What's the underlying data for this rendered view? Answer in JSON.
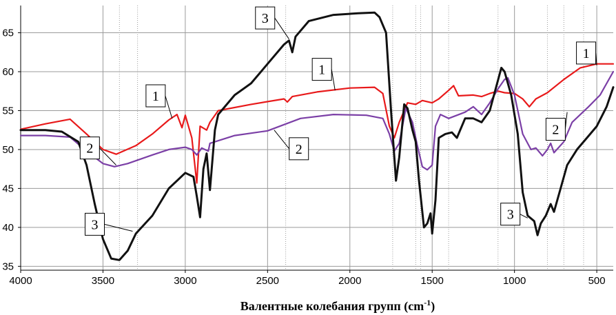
{
  "chart_data": {
    "type": "line",
    "title": "",
    "xlabel": "Валентные колебания групп (cm",
    "xlabel_sup": "-1",
    "xlabel_tail": ")",
    "ylabel": "",
    "xlim": [
      4000,
      400
    ],
    "ylim": [
      34.5,
      68.5
    ],
    "x_reversed": true,
    "grid": true,
    "legend": "none",
    "x_ticks": [
      4000,
      3500,
      3000,
      2500,
      2000,
      1500,
      1000,
      500
    ],
    "x_tick_labels": [
      "4000",
      "3500",
      "3000",
      "2500",
      "2000",
      "1500",
      "1000",
      "500"
    ],
    "y_ticks": [
      35,
      40,
      45,
      50,
      55,
      60,
      65
    ],
    "y_tick_labels": [
      "35",
      "40",
      "45",
      "50",
      "55",
      "60",
      "65"
    ],
    "reference_lines_x": [
      3400,
      3290,
      2390,
      1740,
      1600,
      1570,
      1400,
      1100,
      800,
      700,
      580
    ],
    "series": [
      {
        "name": "1",
        "color": "#e8191a",
        "points": [
          [
            4000,
            52.6
          ],
          [
            3850,
            53.3
          ],
          [
            3700,
            53.9
          ],
          [
            3600,
            52.0
          ],
          [
            3500,
            50.0
          ],
          [
            3420,
            49.4
          ],
          [
            3300,
            50.5
          ],
          [
            3200,
            52.0
          ],
          [
            3100,
            53.8
          ],
          [
            3050,
            54.5
          ],
          [
            3020,
            52.8
          ],
          [
            3000,
            54.4
          ],
          [
            2960,
            51.5
          ],
          [
            2930,
            45.7
          ],
          [
            2910,
            53.0
          ],
          [
            2870,
            52.5
          ],
          [
            2850,
            53.5
          ],
          [
            2800,
            55.0
          ],
          [
            2600,
            55.8
          ],
          [
            2400,
            56.5
          ],
          [
            2380,
            56.1
          ],
          [
            2350,
            56.8
          ],
          [
            2200,
            57.4
          ],
          [
            2000,
            57.9
          ],
          [
            1850,
            58.0
          ],
          [
            1800,
            57.2
          ],
          [
            1760,
            53.0
          ],
          [
            1730,
            51.5
          ],
          [
            1700,
            53.5
          ],
          [
            1650,
            56.0
          ],
          [
            1600,
            55.8
          ],
          [
            1560,
            56.3
          ],
          [
            1500,
            56.0
          ],
          [
            1460,
            56.5
          ],
          [
            1400,
            57.6
          ],
          [
            1370,
            58.2
          ],
          [
            1340,
            56.9
          ],
          [
            1250,
            57.0
          ],
          [
            1200,
            56.8
          ],
          [
            1150,
            57.2
          ],
          [
            1100,
            57.5
          ],
          [
            1060,
            57.3
          ],
          [
            1000,
            57.2
          ],
          [
            950,
            56.5
          ],
          [
            910,
            55.5
          ],
          [
            870,
            56.5
          ],
          [
            800,
            57.3
          ],
          [
            700,
            59.0
          ],
          [
            600,
            60.5
          ],
          [
            500,
            61.0
          ],
          [
            400,
            61.0
          ]
        ]
      },
      {
        "name": "2",
        "color": "#7b3fa6",
        "points": [
          [
            4000,
            51.8
          ],
          [
            3850,
            51.8
          ],
          [
            3700,
            51.6
          ],
          [
            3600,
            49.8
          ],
          [
            3500,
            48.2
          ],
          [
            3430,
            47.8
          ],
          [
            3350,
            48.2
          ],
          [
            3200,
            49.3
          ],
          [
            3100,
            50.0
          ],
          [
            3000,
            50.3
          ],
          [
            2960,
            50.0
          ],
          [
            2930,
            49.3
          ],
          [
            2900,
            50.2
          ],
          [
            2860,
            49.8
          ],
          [
            2850,
            50.8
          ],
          [
            2700,
            51.8
          ],
          [
            2500,
            52.4
          ],
          [
            2300,
            54.0
          ],
          [
            2100,
            54.5
          ],
          [
            1900,
            54.4
          ],
          [
            1800,
            54.0
          ],
          [
            1760,
            52.0
          ],
          [
            1730,
            49.8
          ],
          [
            1700,
            50.8
          ],
          [
            1660,
            55.3
          ],
          [
            1620,
            53.5
          ],
          [
            1590,
            50.5
          ],
          [
            1560,
            47.8
          ],
          [
            1530,
            47.4
          ],
          [
            1500,
            48.0
          ],
          [
            1480,
            53.0
          ],
          [
            1450,
            54.5
          ],
          [
            1400,
            54.0
          ],
          [
            1300,
            54.8
          ],
          [
            1250,
            55.5
          ],
          [
            1200,
            54.5
          ],
          [
            1150,
            56.0
          ],
          [
            1100,
            57.8
          ],
          [
            1060,
            59.0
          ],
          [
            1040,
            59.2
          ],
          [
            1000,
            57.0
          ],
          [
            950,
            52.0
          ],
          [
            900,
            50.0
          ],
          [
            870,
            50.2
          ],
          [
            830,
            49.2
          ],
          [
            800,
            50.0
          ],
          [
            780,
            50.8
          ],
          [
            760,
            49.6
          ],
          [
            700,
            51.0
          ],
          [
            650,
            53.5
          ],
          [
            550,
            55.5
          ],
          [
            480,
            57.0
          ],
          [
            400,
            60.0
          ]
        ]
      },
      {
        "name": "3",
        "color": "#111111",
        "points": [
          [
            4000,
            52.5
          ],
          [
            3850,
            52.5
          ],
          [
            3750,
            52.3
          ],
          [
            3650,
            51.0
          ],
          [
            3600,
            48.0
          ],
          [
            3550,
            43.0
          ],
          [
            3500,
            38.5
          ],
          [
            3450,
            36.0
          ],
          [
            3400,
            35.8
          ],
          [
            3350,
            37.0
          ],
          [
            3300,
            39.2
          ],
          [
            3200,
            41.5
          ],
          [
            3100,
            45.0
          ],
          [
            3000,
            47.0
          ],
          [
            2950,
            46.5
          ],
          [
            2930,
            44.0
          ],
          [
            2910,
            41.3
          ],
          [
            2890,
            47.5
          ],
          [
            2870,
            49.5
          ],
          [
            2850,
            44.8
          ],
          [
            2820,
            52.5
          ],
          [
            2800,
            54.5
          ],
          [
            2700,
            57.0
          ],
          [
            2600,
            58.5
          ],
          [
            2500,
            61.0
          ],
          [
            2400,
            63.5
          ],
          [
            2370,
            64.0
          ],
          [
            2350,
            62.5
          ],
          [
            2330,
            64.5
          ],
          [
            2250,
            66.5
          ],
          [
            2100,
            67.3
          ],
          [
            1950,
            67.5
          ],
          [
            1850,
            67.6
          ],
          [
            1820,
            67.0
          ],
          [
            1780,
            65.0
          ],
          [
            1750,
            55.0
          ],
          [
            1720,
            46.0
          ],
          [
            1700,
            49.0
          ],
          [
            1670,
            55.8
          ],
          [
            1650,
            55.3
          ],
          [
            1620,
            52.5
          ],
          [
            1600,
            51.0
          ],
          [
            1580,
            46.0
          ],
          [
            1550,
            40.0
          ],
          [
            1530,
            40.5
          ],
          [
            1510,
            41.8
          ],
          [
            1500,
            39.2
          ],
          [
            1480,
            43.5
          ],
          [
            1460,
            51.5
          ],
          [
            1420,
            52.0
          ],
          [
            1380,
            52.2
          ],
          [
            1350,
            51.5
          ],
          [
            1300,
            54.0
          ],
          [
            1250,
            54.0
          ],
          [
            1200,
            53.5
          ],
          [
            1150,
            55.0
          ],
          [
            1080,
            60.5
          ],
          [
            1060,
            60.0
          ],
          [
            1020,
            57.0
          ],
          [
            980,
            52.0
          ],
          [
            950,
            44.5
          ],
          [
            920,
            41.5
          ],
          [
            880,
            40.8
          ],
          [
            860,
            39.0
          ],
          [
            840,
            40.5
          ],
          [
            810,
            41.5
          ],
          [
            780,
            43.0
          ],
          [
            760,
            42.0
          ],
          [
            720,
            45.0
          ],
          [
            680,
            48.0
          ],
          [
            620,
            50.0
          ],
          [
            560,
            51.5
          ],
          [
            500,
            53.0
          ],
          [
            440,
            55.5
          ],
          [
            400,
            58.0
          ]
        ]
      }
    ],
    "callouts": [
      {
        "label": "1",
        "x": 3180,
        "y": 56.9,
        "tx": 3080,
        "ty": 54.0
      },
      {
        "label": "1",
        "x": 2170,
        "y": 60.3,
        "tx": 2090,
        "ty": 57.6
      },
      {
        "label": "1",
        "x": 565,
        "y": 62.4,
        "tx": 500,
        "ty": 60.8
      },
      {
        "label": "2",
        "x": 3580,
        "y": 50.2,
        "tx": 3420,
        "ty": 48.0
      },
      {
        "label": "2",
        "x": 2310,
        "y": 50.1,
        "tx": 2460,
        "ty": 52.5
      },
      {
        "label": "2",
        "x": 750,
        "y": 52.6,
        "tx": 680,
        "ty": 54.8
      },
      {
        "label": "3",
        "x": 3550,
        "y": 40.4,
        "tx": 3320,
        "ty": 39.5
      },
      {
        "label": "3",
        "x": 2515,
        "y": 66.9,
        "tx": 2370,
        "ty": 64.2
      },
      {
        "label": "3",
        "x": 1025,
        "y": 41.7,
        "tx": 920,
        "ty": 41.2
      }
    ]
  }
}
